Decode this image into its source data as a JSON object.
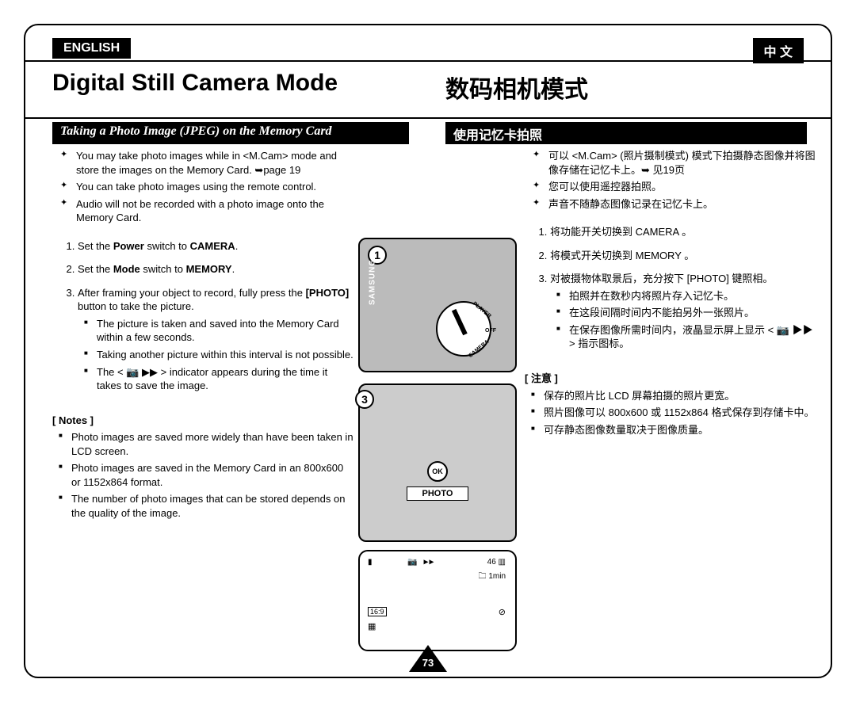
{
  "page_number": "73",
  "lang_tabs": {
    "en": "ENGLISH",
    "cn": "中  文"
  },
  "title": {
    "en": "Digital Still Camera Mode",
    "cn": "数码相机模式"
  },
  "subtitle": {
    "en": "Taking a Photo Image (JPEG) on the Memory Card",
    "cn": "使用记忆卡拍照"
  },
  "en": {
    "intro": [
      "You may take photo images while in <M.Cam> mode and store the images on the Memory Card. ➥page 19",
      "You can take photo images using the remote control.",
      "Audio will not be recorded with a photo image onto the Memory Card."
    ],
    "steps": [
      {
        "text": "Set the ",
        "bold1": "Power",
        "mid": " switch to ",
        "bold2": "CAMERA",
        "tail": "."
      },
      {
        "text": "Set the ",
        "bold1": "Mode",
        "mid": " switch to ",
        "bold2": "MEMORY",
        "tail": "."
      },
      {
        "text": "After framing your object to record, fully press the ",
        "bold1": "[PHOTO]",
        "mid": " button to take the picture.",
        "bold2": "",
        "tail": ""
      }
    ],
    "step3_sub": [
      "The picture is taken and saved into the Memory Card within a few seconds.",
      "Taking another picture within this interval is not possible.",
      "The < 📷 ▶▶ > indicator appears during the time it takes to save the image."
    ],
    "notes_hdr": "[ Notes ]",
    "notes": [
      "Photo images are saved more widely than have been taken in LCD screen.",
      "Photo images are saved in the Memory Card in an 800x600 or 1152x864 format.",
      "The number of photo images that can be stored depends on the quality of the image."
    ]
  },
  "cn": {
    "intro": [
      "可以 <M.Cam> (照片摄制模式) 模式下拍摄静态图像并将图像存储在记忆卡上。➥ 见19页",
      "您可以使用遥控器拍照。",
      "声音不随静态图像记录在记忆卡上。"
    ],
    "steps": [
      "将功能开关切换到 CAMERA 。",
      "将模式开关切换到 MEMORY 。",
      "对被摄物体取景后，充分按下 [PHOTO] 键照相。"
    ],
    "step3_sub": [
      "拍照并在数秒内将照片存入记忆卡。",
      "在这段间隔时间内不能拍另外一张照片。",
      "在保存图像所需时间内，液晶显示屏上显示 < 📷 ▶▶ > 指示图标。"
    ],
    "notes_hdr": "[ 注意 ]",
    "notes": [
      "保存的照片比 LCD 屏幕拍摄的照片更宽。",
      "照片图像可以 800x600 或 1152x864 格式保存到存储卡中。",
      "可存静态图像数量取决于图像质量。"
    ]
  },
  "fig": {
    "brand": "SAMSUNG",
    "dial": {
      "player": "PLAYER",
      "off": "OFF",
      "camera": "CAMERA"
    },
    "num1": "1",
    "num3": "3",
    "ok": "OK",
    "photo": "PHOTO"
  },
  "lcd": {
    "rec_icon": "▮",
    "ind": "📷 ▶▶",
    "count": "46 ▥",
    "time": "🗀 1min",
    "mode_icon": "16:9",
    "card_icon": "▦",
    "lock_icon": "⊘"
  }
}
